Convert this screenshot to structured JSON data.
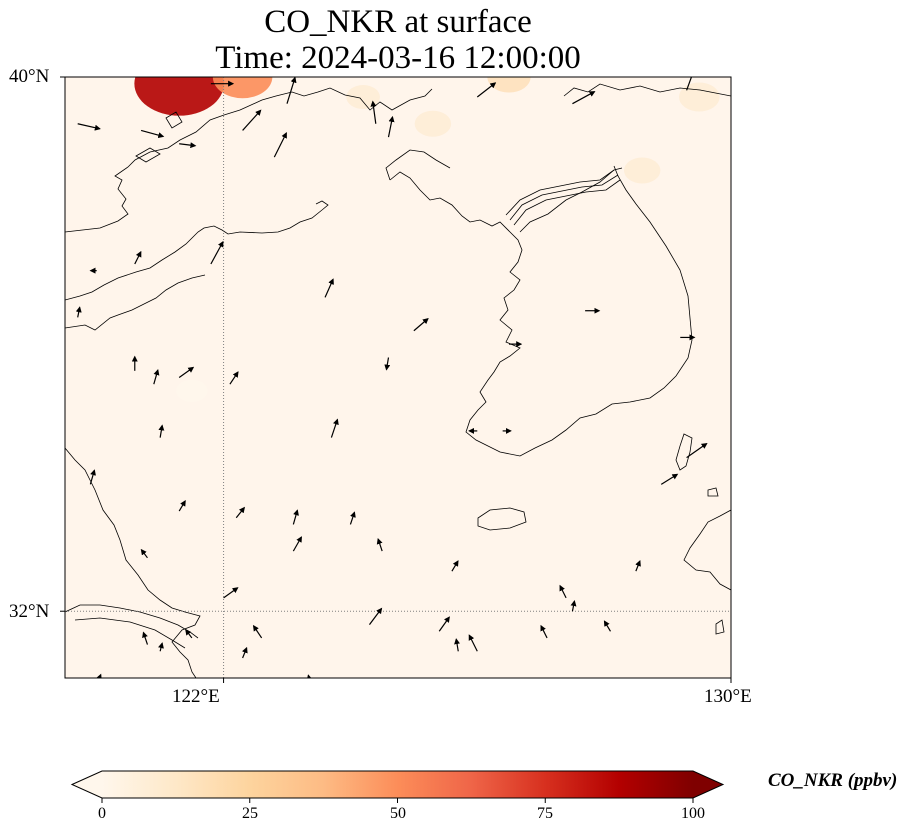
{
  "title": {
    "line1": "CO_NKR at surface",
    "line2": "Time: 2024-03-16 12:00:00"
  },
  "map": {
    "extent": {
      "lon_min": 119.5,
      "lon_max": 130.0,
      "lat_min": 31.0,
      "lat_max": 40.0
    },
    "gridlines": {
      "lons": [
        122
      ],
      "lats": [
        32
      ],
      "style": "dotted",
      "color": "#808080"
    },
    "lat_labels": [
      "40°N",
      "32°N"
    ],
    "lon_labels": [
      "122°E",
      "130°E"
    ],
    "background_color": "#fff5eb",
    "coastline_color": "#000000"
  },
  "hotspots": [
    {
      "lon": 121.3,
      "lat": 39.9,
      "value": 88
    },
    {
      "lon": 122.3,
      "lat": 40.0,
      "value": 45
    },
    {
      "lon": 126.5,
      "lat": 40.0,
      "value": 22
    },
    {
      "lon": 129.5,
      "lat": 39.7,
      "value": 18
    },
    {
      "lon": 128.6,
      "lat": 38.6,
      "value": 12
    },
    {
      "lon": 125.3,
      "lat": 39.3,
      "value": 12
    },
    {
      "lon": 124.2,
      "lat": 39.7,
      "value": 8
    },
    {
      "lon": 121.5,
      "lat": 35.3,
      "value": 5
    }
  ],
  "wind_vectors": [
    [
      119.7,
      39.3,
      22,
      -5
    ],
    [
      120.7,
      39.2,
      22,
      -6
    ],
    [
      121.3,
      39.0,
      16,
      -2
    ],
    [
      121.8,
      39.9,
      22,
      0
    ],
    [
      122.3,
      39.2,
      18,
      20
    ],
    [
      122.8,
      38.8,
      12,
      24
    ],
    [
      123.0,
      39.6,
      8,
      26
    ],
    [
      124.4,
      39.3,
      -3,
      22
    ],
    [
      124.6,
      39.1,
      4,
      20
    ],
    [
      126.0,
      39.7,
      18,
      14
    ],
    [
      127.5,
      39.6,
      22,
      12
    ],
    [
      129.3,
      39.8,
      8,
      22
    ],
    [
      120.0,
      37.1,
      -6,
      0
    ],
    [
      120.6,
      37.2,
      6,
      12
    ],
    [
      121.8,
      37.2,
      12,
      22
    ],
    [
      123.6,
      36.7,
      8,
      18
    ],
    [
      125.0,
      36.2,
      14,
      12
    ],
    [
      124.6,
      35.8,
      -2,
      -12
    ],
    [
      126.5,
      36.0,
      12,
      0
    ],
    [
      127.7,
      36.5,
      14,
      0
    ],
    [
      129.2,
      36.1,
      14,
      0
    ],
    [
      119.7,
      36.4,
      2,
      10
    ],
    [
      120.6,
      35.6,
      0,
      14
    ],
    [
      120.9,
      35.4,
      4,
      14
    ],
    [
      121.3,
      35.5,
      14,
      10
    ],
    [
      122.1,
      35.4,
      8,
      12
    ],
    [
      123.7,
      34.6,
      6,
      18
    ],
    [
      121.0,
      34.6,
      2,
      12
    ],
    [
      126.0,
      34.7,
      -8,
      0
    ],
    [
      126.4,
      34.7,
      8,
      0
    ],
    [
      129.3,
      34.3,
      20,
      14
    ],
    [
      128.9,
      33.9,
      16,
      10
    ],
    [
      119.9,
      33.9,
      4,
      14
    ],
    [
      121.3,
      33.5,
      6,
      10
    ],
    [
      122.2,
      33.4,
      8,
      10
    ],
    [
      123.1,
      33.3,
      4,
      14
    ],
    [
      124.0,
      33.3,
      4,
      12
    ],
    [
      120.8,
      32.8,
      -6,
      8
    ],
    [
      122.0,
      32.2,
      14,
      10
    ],
    [
      123.1,
      32.9,
      8,
      14
    ],
    [
      124.5,
      32.9,
      -4,
      12
    ],
    [
      125.6,
      32.6,
      6,
      10
    ],
    [
      121.5,
      31.6,
      -6,
      8
    ],
    [
      122.6,
      31.6,
      -8,
      12
    ],
    [
      124.3,
      31.8,
      12,
      16
    ],
    [
      125.4,
      31.7,
      10,
      14
    ],
    [
      127.4,
      32.2,
      -6,
      12
    ],
    [
      127.5,
      32.0,
      2,
      10
    ],
    [
      128.5,
      32.6,
      4,
      10
    ],
    [
      128.1,
      31.7,
      -6,
      10
    ],
    [
      127.1,
      31.6,
      -6,
      12
    ],
    [
      126.0,
      31.4,
      -8,
      16
    ],
    [
      120.8,
      31.5,
      -4,
      12
    ],
    [
      121.0,
      31.4,
      2,
      8
    ],
    [
      123.0,
      30.6,
      6,
      20
    ],
    [
      125.7,
      31.4,
      -2,
      12
    ],
    [
      123.4,
      30.8,
      -4,
      16
    ],
    [
      122.3,
      31.3,
      4,
      10
    ],
    [
      120.0,
      30.9,
      4,
      10
    ]
  ],
  "colorbar": {
    "label": "CO_NKR (ppbv)",
    "min": 0,
    "max": 100,
    "ticks": [
      "0",
      "25",
      "50",
      "75",
      "100"
    ],
    "colormap": "OrRd",
    "colors": [
      "#fff7ec",
      "#fee8c8",
      "#fdd49e",
      "#fdbb84",
      "#fc8d59",
      "#ef6548",
      "#d7301f",
      "#b30000",
      "#7f0000"
    ],
    "extend": "both"
  }
}
